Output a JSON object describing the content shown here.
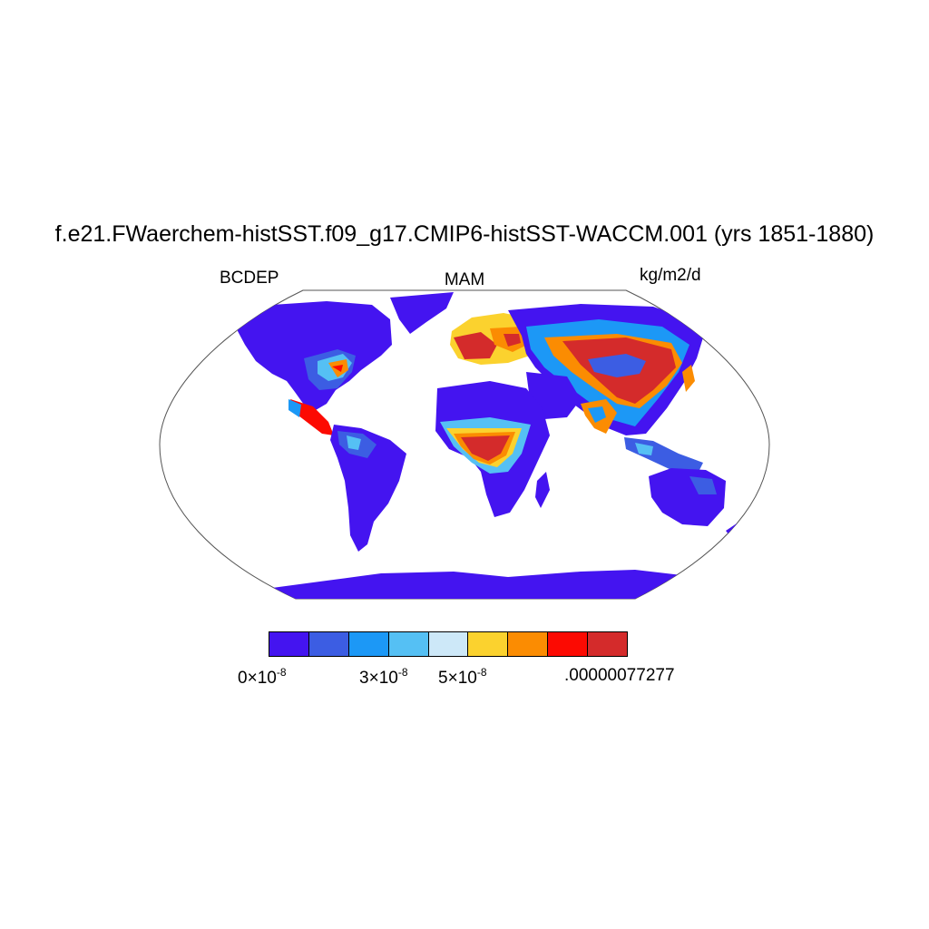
{
  "title": "f.e21.FWaerchem-histSST.f09_g17.CMIP6-histSST-WACCM.001 (yrs 1851-1880)",
  "left_string": "BCDEP",
  "center_string": "MAM",
  "right_string": "kg/m2/d",
  "colorbar": {
    "colors": [
      "#4414f0",
      "#3c5de3",
      "#1c98f6",
      "#55c0f4",
      "#cde8f8",
      "#fbd22e",
      "#fb8c02",
      "#fc0a02",
      "#d42b2b"
    ],
    "labels": [
      {
        "mantissa": "0",
        "times": "×",
        "base": "10",
        "exponent": "-8"
      },
      {
        "mantissa": "3",
        "times": "×",
        "base": "10",
        "exponent": "-8"
      },
      {
        "mantissa": "5",
        "times": "×",
        "base": "10",
        "exponent": "-8"
      },
      {
        "text": ".00000077277"
      }
    ]
  }
}
